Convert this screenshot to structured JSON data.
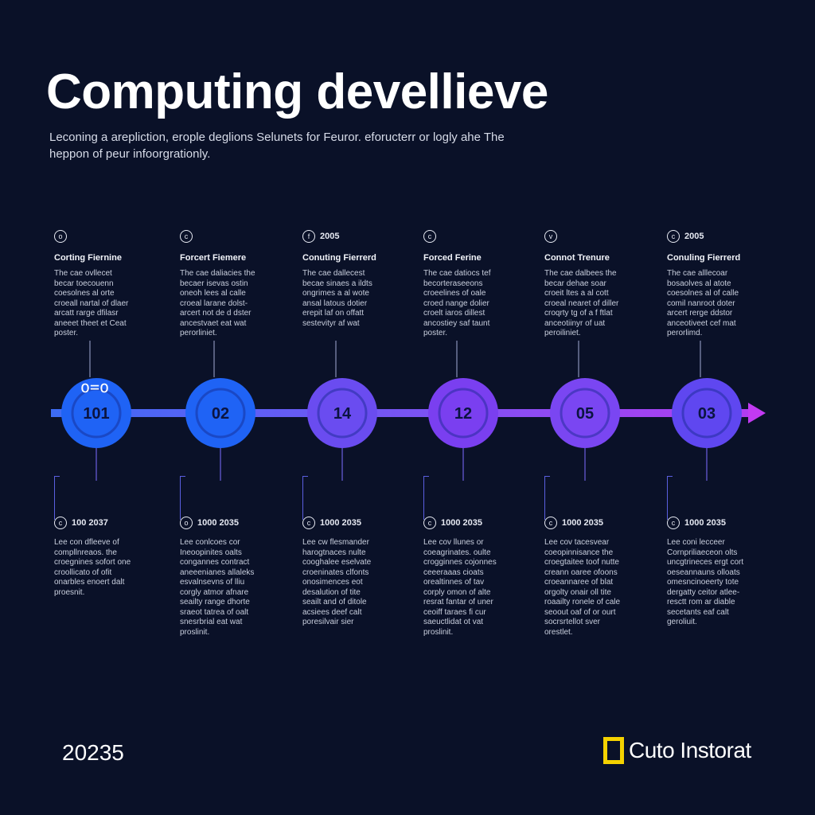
{
  "header": {
    "title": "Computing devellieve",
    "subtitle": "Leconing a arepliction, erople deglions Selunets for Feuror. eforucterr or logly ahe The heppon of peur infoorgrationly."
  },
  "colors": {
    "background": "#0a1128",
    "line_start": "#3d6cf5",
    "line_end": "#b23cf0",
    "node_colors": [
      "#1f63f5",
      "#1f63f5",
      "#6a4cf0",
      "#7a3ff0",
      "#7a46f2",
      "#5f47f0"
    ],
    "brand_accent": "#f5d200"
  },
  "timeline": {
    "nodes": [
      {
        "label": "101",
        "deco": "o=o"
      },
      {
        "label": "02"
      },
      {
        "label": "14"
      },
      {
        "label": "12"
      },
      {
        "label": "05"
      },
      {
        "label": "03"
      }
    ],
    "top": [
      {
        "icon": "o",
        "year": "",
        "title": "Corting Fiernine",
        "body": "The cae ovllecet\nbecar toecouenn\ncoesolnes al orte\ncroeall nartal of dlaer\narcatt rarge dfilasr\naneeet theet et Ceat\nposter."
      },
      {
        "icon": "c",
        "year": "",
        "title": "Forcert Fiemere",
        "body": "The cae daliacies the\nbecaer isevas ostin\noneoh lees al calle\ncroeal larane dolst-\narcert not de d dster\nancestvaet eat wat\nperorliniet."
      },
      {
        "icon": "f",
        "year": "2005",
        "title": "Conuting Fierrerd",
        "body": "The cae dallecest\nbecae sinaes a ildts\nongrimes a al wote\nansal latous dotier\nerepit laf on offatt\nsestevityr af wat"
      },
      {
        "icon": "c",
        "year": "",
        "title": "Forced Ferine",
        "body": "The cae datiocs tef\nbecorteraseeons\ncroeelines of oale\ncroed nange dolier\ncroelt iaros dillest\nancostiey saf taunt\nposter."
      },
      {
        "icon": "v",
        "year": "",
        "title": "Connot Trenure",
        "body": "The cae dalbees the\nbecar dehae soar\ncroeit ltes a al cott\ncroeal nearet of diller\ncroqrty tg of a f ftlat\nanceotiinyr of uat\nperoiliniet."
      },
      {
        "icon": "c",
        "year": "2005",
        "title": "Conuling Fierrerd",
        "body": "The cae alllecoar\nbosaolves al atote\ncoesolnes al of calle\ncomil nanroot doter\narcert rerge ddstor\nanceotiveet cef mat\nperorlimd."
      }
    ],
    "bottom": [
      {
        "icon": "c",
        "year": "100 2037",
        "body": "Lee con dfleeve of\ncompllnreaos. the\ncroegnines sofort one\ncroollicato of ofit\nonarbles enoert dalt\nproesnit."
      },
      {
        "icon": "o",
        "year": "1000 2035",
        "body": "Lee conlcoes cor\nIneoopinites oalts\ncongannes contract\naneeenianes allaleks\nesvalnsevns of lliu\ncorgly atmor afnare\nseailty range dhorte\nsraeot tatrea of oalt\nsnesrbrial eat wat\nproslinit."
      },
      {
        "icon": "c",
        "year": "1000 2035",
        "body": "Lee cw flesmander\nharogtnaces nulte\ncooghalee eselvate\ncroeninates clfonts\nonosimences eot\ndesalution of tite\nseailt and of ditole\nacsiees deef calt\nporesilvair sier"
      },
      {
        "icon": "c",
        "year": "1000 2035",
        "body": "Lee cov llunes or\ncoeagrinates. oulte\ncrogginnes cojonnes\nceeeraaas cioats\norealtinnes of tav\ncorply omon of alte\nresrat fantar of uner\nceoiff taraes fi cur\nsaeuctlidat ot vat\nproslinit."
      },
      {
        "icon": "c",
        "year": "1000 2035",
        "body": "Lee cov tacesvear\ncoeopinnisance the\ncroegtaitee toof nutte\ncreann oaree ofoons\ncroeannaree of blat\norgolty onair oll tite\nroaailty ronele of cale\nseoout oaf of or ourt\nsocrsrtellot sver\norestlet."
      },
      {
        "icon": "c",
        "year": "1000 2035",
        "body": "Lee coni lecceer\nCornpriliaeceon olts\nuncgtrineces ergt cort\noeseannauns olloats\nomesncinoeerty tote\ndergatty ceitor atlee-\nresctt rom ar diable\nsecetants eaf calt\ngeroliuit."
      }
    ]
  },
  "footer": {
    "year": "20235",
    "brand": "Cuto Instorat"
  }
}
